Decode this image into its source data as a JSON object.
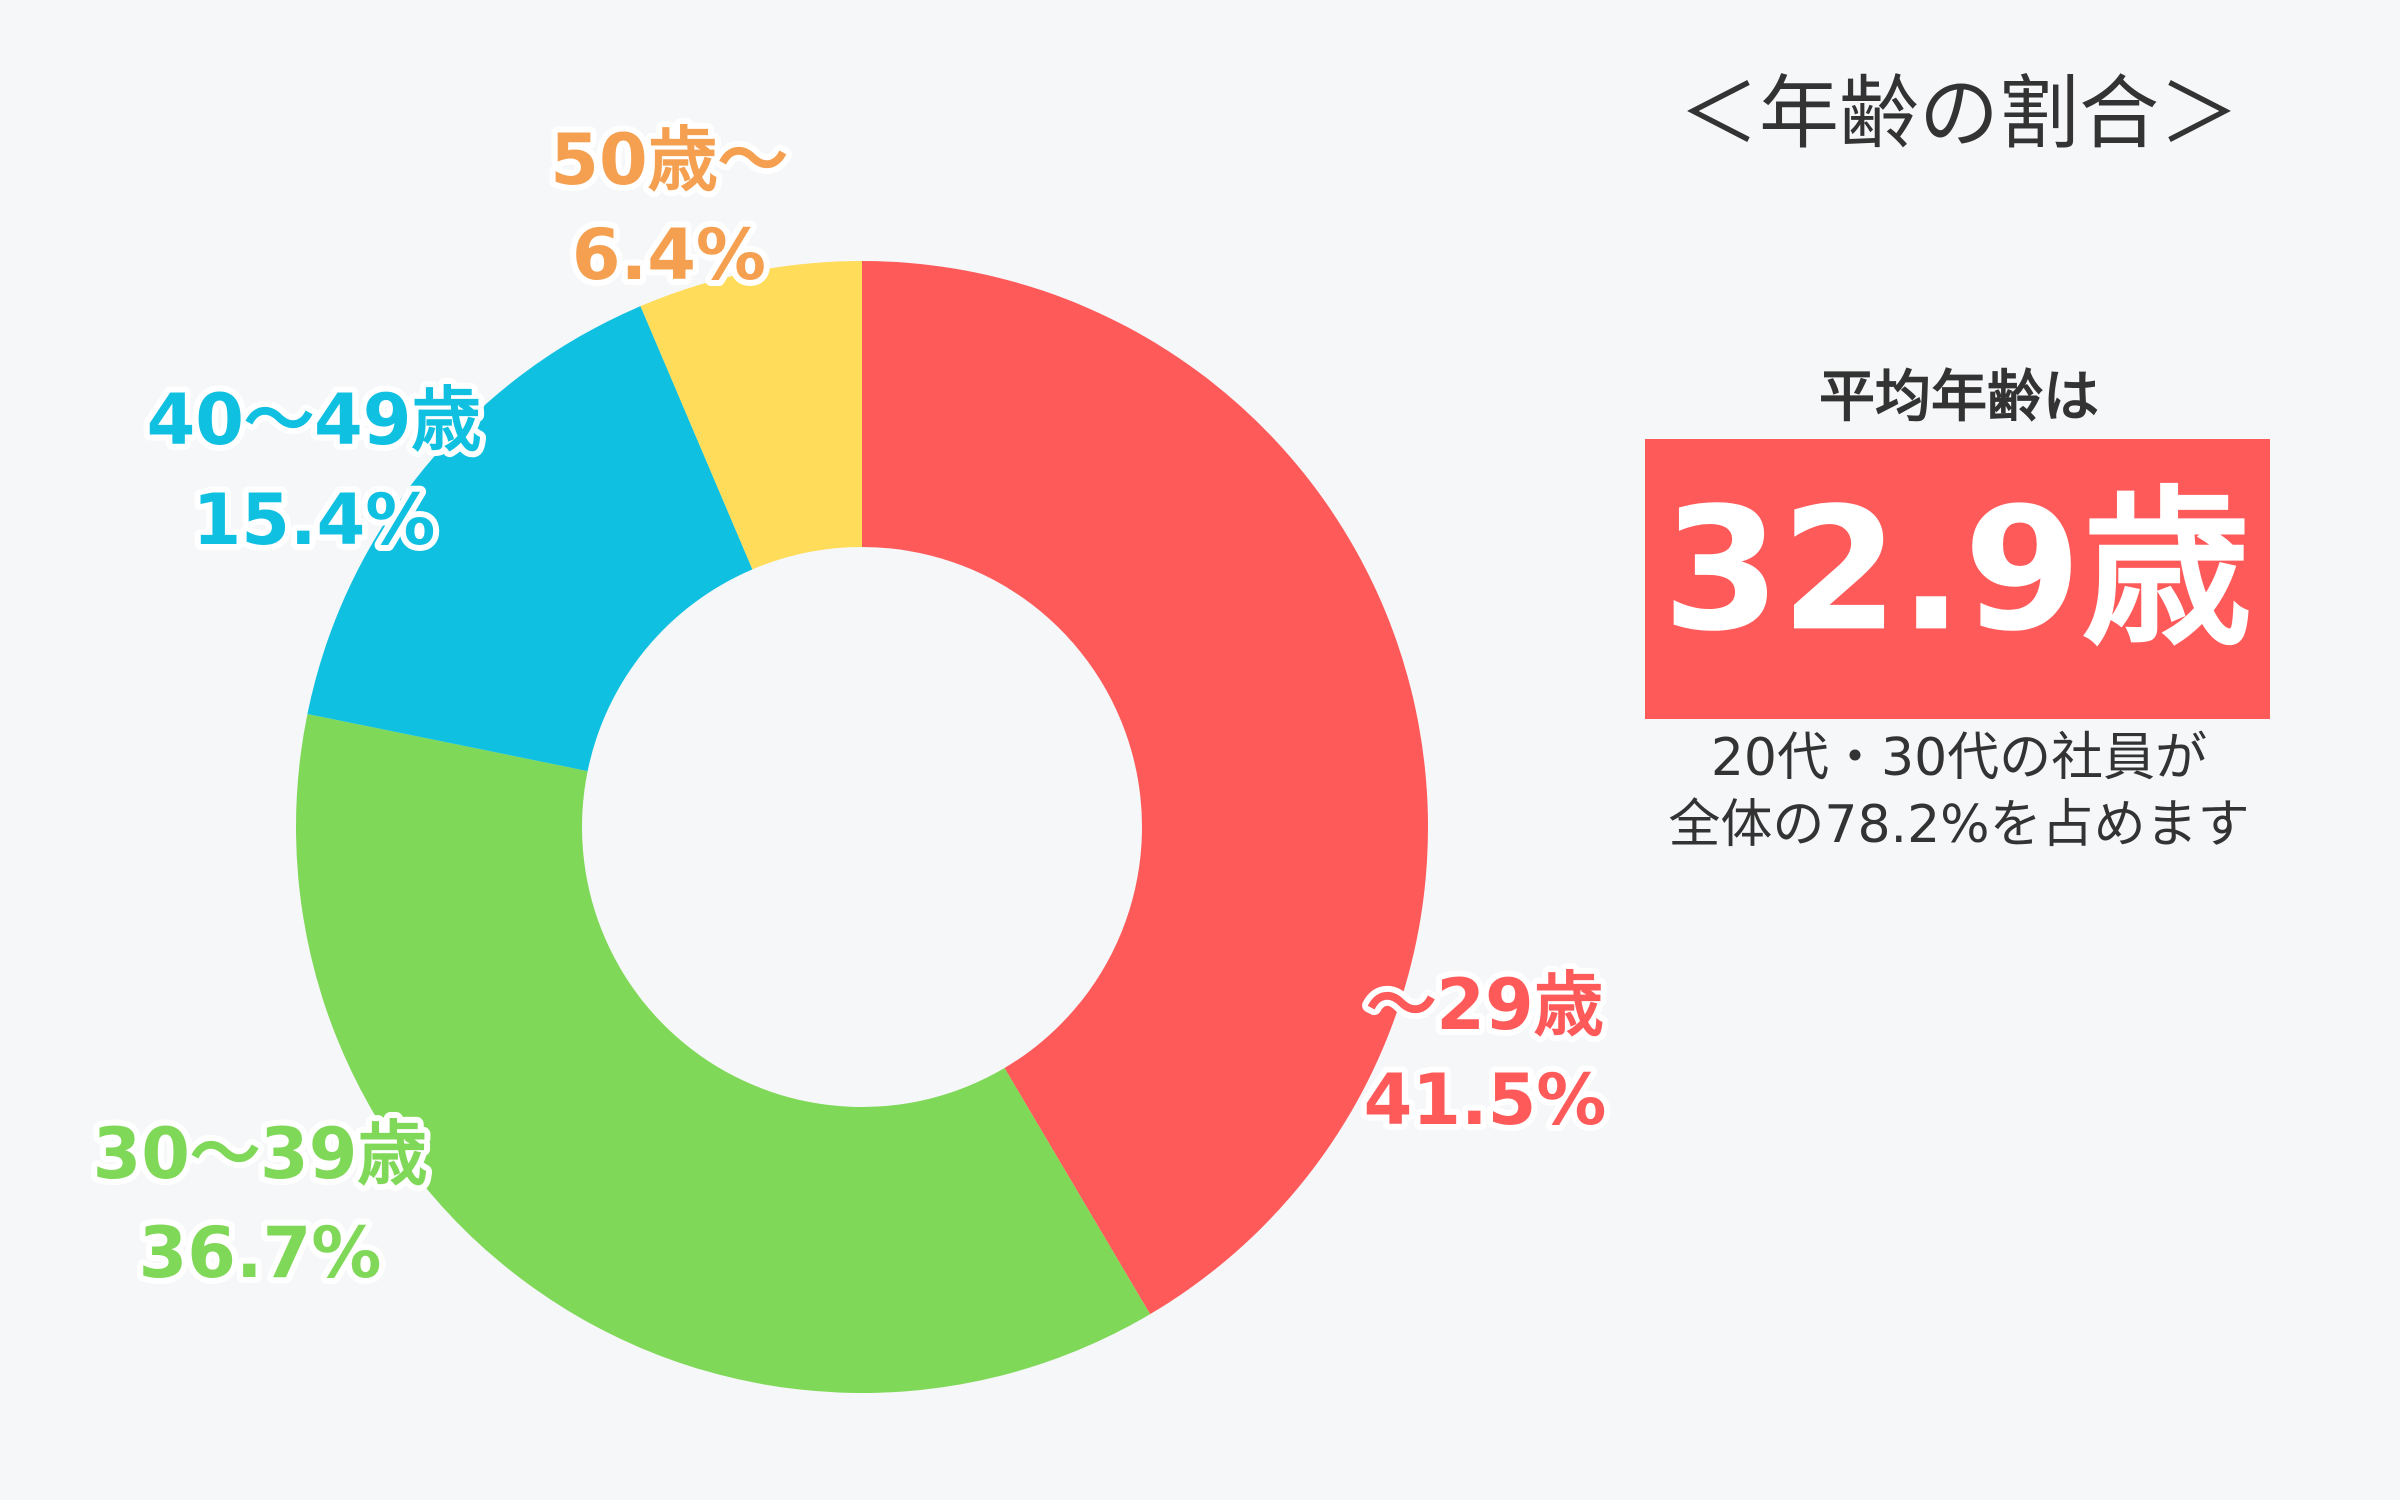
{
  "chart_data": {
    "type": "donut",
    "title": "＜年齢の割合＞",
    "categories": [
      "～29歳",
      "30～39歳",
      "40～49歳",
      "50歳～"
    ],
    "values": [
      41.5,
      36.7,
      15.4,
      6.4
    ],
    "value_labels": [
      "41.5%",
      "36.7%",
      "15.4%",
      "6.4%"
    ],
    "colors": [
      "#ff5a5a",
      "#80d858",
      "#10c0e0",
      "#ffdc5a"
    ],
    "label_colors": [
      "#ff5a5a",
      "#80d858",
      "#10c0e0",
      "#f5a050"
    ],
    "annotations": {
      "heading": "平均年齢は",
      "highlight": "32.9歳",
      "note_lines": [
        "20代・30代の社員が",
        "全体の78.2%を占めます"
      ]
    }
  }
}
